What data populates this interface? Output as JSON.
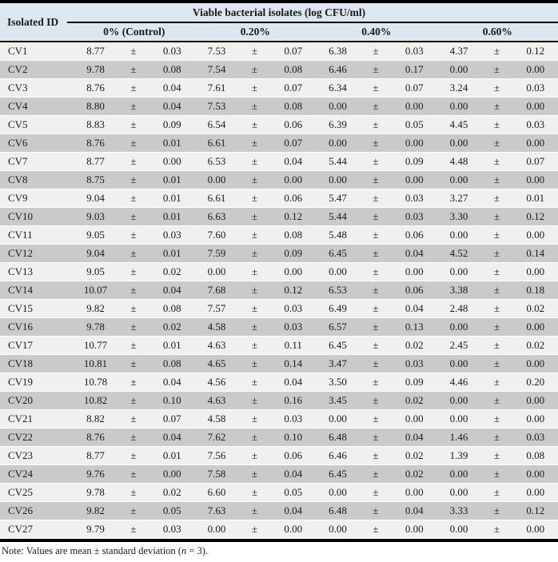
{
  "table": {
    "id_header": "Isolated ID",
    "span_header": "Viable bacterial isolates (log CFU/ml)",
    "groups": [
      "0% (Control)",
      "0.20%",
      "0.40%",
      "0.60%"
    ],
    "plus_minus": "±",
    "rows": [
      {
        "id": "CV1",
        "values": [
          [
            "8.77",
            "0.03"
          ],
          [
            "7.53",
            "0.07"
          ],
          [
            "6.38",
            "0.03"
          ],
          [
            "4.37",
            "0.12"
          ]
        ]
      },
      {
        "id": "CV2",
        "values": [
          [
            "9.78",
            "0.08"
          ],
          [
            "7.54",
            "0.08"
          ],
          [
            "6.46",
            "0.17"
          ],
          [
            "0.00",
            "0.00"
          ]
        ]
      },
      {
        "id": "CV3",
        "values": [
          [
            "8.76",
            "0.04"
          ],
          [
            "7.61",
            "0.07"
          ],
          [
            "6.34",
            "0.07"
          ],
          [
            "3.24",
            "0.03"
          ]
        ]
      },
      {
        "id": "CV4",
        "values": [
          [
            "8.80",
            "0.04"
          ],
          [
            "7.53",
            "0.08"
          ],
          [
            "0.00",
            "0.00"
          ],
          [
            "0.00",
            "0.00"
          ]
        ]
      },
      {
        "id": "CV5",
        "values": [
          [
            "8.83",
            "0.09"
          ],
          [
            "6.54",
            "0.06"
          ],
          [
            "6.39",
            "0.05"
          ],
          [
            "4.45",
            "0.03"
          ]
        ]
      },
      {
        "id": "CV6",
        "values": [
          [
            "8.76",
            "0.01"
          ],
          [
            "6.61",
            "0.07"
          ],
          [
            "0.00",
            "0.00"
          ],
          [
            "0.00",
            "0.00"
          ]
        ]
      },
      {
        "id": "CV7",
        "values": [
          [
            "8.77",
            "0.00"
          ],
          [
            "6.53",
            "0.04"
          ],
          [
            "5.44",
            "0.09"
          ],
          [
            "4.48",
            "0.07"
          ]
        ]
      },
      {
        "id": "CV8",
        "values": [
          [
            "8.75",
            "0.01"
          ],
          [
            "0.00",
            "0.00"
          ],
          [
            "0.00",
            "0.00"
          ],
          [
            "0.00",
            "0.00"
          ]
        ]
      },
      {
        "id": "CV9",
        "values": [
          [
            "9.04",
            "0.01"
          ],
          [
            "6.61",
            "0.06"
          ],
          [
            "5.47",
            "0.03"
          ],
          [
            "3.27",
            "0.01"
          ]
        ]
      },
      {
        "id": "CV10",
        "values": [
          [
            "9.03",
            "0.01"
          ],
          [
            "6.63",
            "0.12"
          ],
          [
            "5.44",
            "0.03"
          ],
          [
            "3.30",
            "0.12"
          ]
        ]
      },
      {
        "id": "CV11",
        "values": [
          [
            "9.05",
            "0.03"
          ],
          [
            "7.60",
            "0.08"
          ],
          [
            "5.48",
            "0.06"
          ],
          [
            "0.00",
            "0.00"
          ]
        ]
      },
      {
        "id": "CV12",
        "values": [
          [
            "9.04",
            "0.01"
          ],
          [
            "7.59",
            "0.09"
          ],
          [
            "6.45",
            "0.04"
          ],
          [
            "4.52",
            "0.14"
          ]
        ]
      },
      {
        "id": "CV13",
        "values": [
          [
            "9.05",
            "0.02"
          ],
          [
            "0.00",
            "0.00"
          ],
          [
            "0.00",
            "0.00"
          ],
          [
            "0.00",
            "0.00"
          ]
        ]
      },
      {
        "id": "CV14",
        "values": [
          [
            "10.07",
            "0.04"
          ],
          [
            "7.68",
            "0.12"
          ],
          [
            "6.53",
            "0.06"
          ],
          [
            "3.38",
            "0.18"
          ]
        ]
      },
      {
        "id": "CV15",
        "values": [
          [
            "9.82",
            "0.08"
          ],
          [
            "7.57",
            "0.03"
          ],
          [
            "6.49",
            "0.04"
          ],
          [
            "2.48",
            "0.02"
          ]
        ]
      },
      {
        "id": "CV16",
        "values": [
          [
            "9.78",
            "0.02"
          ],
          [
            "4.58",
            "0.03"
          ],
          [
            "6.57",
            "0.13"
          ],
          [
            "0.00",
            "0.00"
          ]
        ]
      },
      {
        "id": "CV17",
        "values": [
          [
            "10.77",
            "0.01"
          ],
          [
            "4.63",
            "0.11"
          ],
          [
            "6.45",
            "0.02"
          ],
          [
            "2.45",
            "0.02"
          ]
        ]
      },
      {
        "id": "CV18",
        "values": [
          [
            "10.81",
            "0.08"
          ],
          [
            "4.65",
            "0.14"
          ],
          [
            "3.47",
            "0.03"
          ],
          [
            "0.00",
            "0.00"
          ]
        ]
      },
      {
        "id": "CV19",
        "values": [
          [
            "10.78",
            "0.04"
          ],
          [
            "4.56",
            "0.04"
          ],
          [
            "3.50",
            "0.09"
          ],
          [
            "4.46",
            "0.20"
          ]
        ]
      },
      {
        "id": "CV20",
        "values": [
          [
            "10.82",
            "0.10"
          ],
          [
            "4.63",
            "0.16"
          ],
          [
            "3.45",
            "0.02"
          ],
          [
            "0.00",
            "0.00"
          ]
        ]
      },
      {
        "id": "CV21",
        "values": [
          [
            "8.82",
            "0.07"
          ],
          [
            "4.58",
            "0.03"
          ],
          [
            "0.00",
            "0.00"
          ],
          [
            "0.00",
            "0.00"
          ]
        ]
      },
      {
        "id": "CV22",
        "values": [
          [
            "8.76",
            "0.04"
          ],
          [
            "7.62",
            "0.10"
          ],
          [
            "6.48",
            "0.04"
          ],
          [
            "1.46",
            "0.03"
          ]
        ]
      },
      {
        "id": "CV23",
        "values": [
          [
            "8.77",
            "0.01"
          ],
          [
            "7.56",
            "0.06"
          ],
          [
            "6.46",
            "0.02"
          ],
          [
            "1.39",
            "0.08"
          ]
        ]
      },
      {
        "id": "CV24",
        "values": [
          [
            "9.76",
            "0.00"
          ],
          [
            "7.58",
            "0.04"
          ],
          [
            "6.45",
            "0.02"
          ],
          [
            "0.00",
            "0.00"
          ]
        ]
      },
      {
        "id": "CV25",
        "values": [
          [
            "9.78",
            "0.02"
          ],
          [
            "6.60",
            "0.05"
          ],
          [
            "0.00",
            "0.00"
          ],
          [
            "0.00",
            "0.00"
          ]
        ]
      },
      {
        "id": "CV26",
        "values": [
          [
            "9.82",
            "0.05"
          ],
          [
            "7.63",
            "0.04"
          ],
          [
            "6.48",
            "0.04"
          ],
          [
            "3.33",
            "0.12"
          ]
        ]
      },
      {
        "id": "CV27",
        "values": [
          [
            "9.79",
            "0.03"
          ],
          [
            "0.00",
            "0.00"
          ],
          [
            "0.00",
            "0.00"
          ],
          [
            "0.00",
            "0.00"
          ]
        ]
      }
    ]
  },
  "note": {
    "prefix": "Note: Values are mean ± standard deviation (",
    "italic": "n",
    "suffix": " = 3)."
  },
  "colors": {
    "header_bg": "#dce7f1",
    "row_light": "#f1f0ee",
    "row_dark": "#c8cbca",
    "rule": "#000000"
  }
}
